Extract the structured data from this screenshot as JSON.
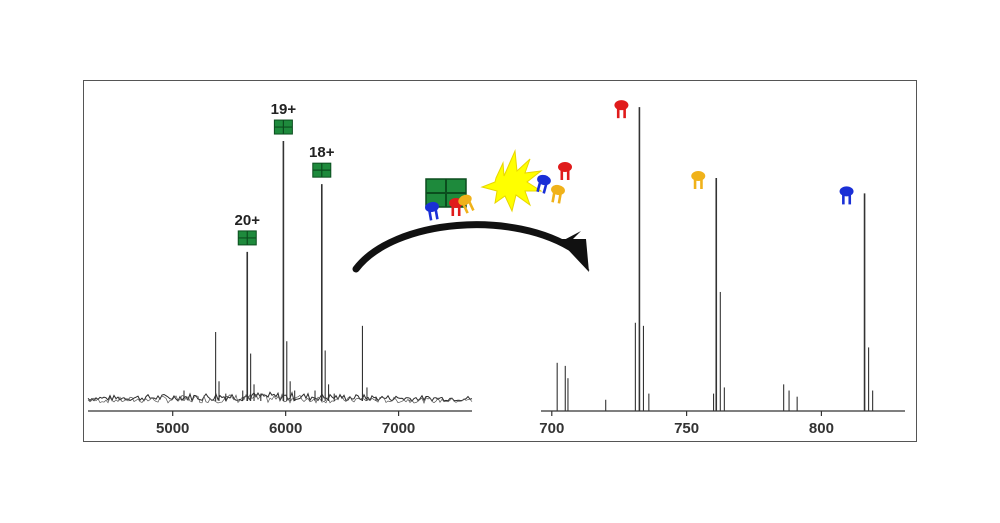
{
  "chart_data": [
    {
      "type": "line",
      "title": "",
      "xlabel": "",
      "ylabel": "",
      "xlim": [
        4250,
        7650
      ],
      "ylim": [
        0,
        100
      ],
      "grid": false,
      "x_ticks": [
        5000,
        6000,
        7000
      ],
      "x_tick_labels": [
        "5000",
        "6000",
        "7000"
      ],
      "peaks": [
        {
          "x": 5100,
          "y": 6
        },
        {
          "x": 5380,
          "y": 25
        },
        {
          "x": 5410,
          "y": 9
        },
        {
          "x": 5470,
          "y": 5
        },
        {
          "x": 5620,
          "y": 6
        },
        {
          "x": 5660,
          "y": 51
        },
        {
          "x": 5690,
          "y": 18
        },
        {
          "x": 5720,
          "y": 8
        },
        {
          "x": 5780,
          "y": 5
        },
        {
          "x": 5980,
          "y": 87
        },
        {
          "x": 6010,
          "y": 22
        },
        {
          "x": 6040,
          "y": 9
        },
        {
          "x": 6080,
          "y": 6
        },
        {
          "x": 6260,
          "y": 6
        },
        {
          "x": 6320,
          "y": 73
        },
        {
          "x": 6350,
          "y": 19
        },
        {
          "x": 6380,
          "y": 8
        },
        {
          "x": 6430,
          "y": 5
        },
        {
          "x": 6680,
          "y": 27
        },
        {
          "x": 6720,
          "y": 7
        },
        {
          "x": 6800,
          "y": 4
        },
        {
          "x": 7100,
          "y": 3
        }
      ],
      "annotations": [
        {
          "text": "20+",
          "x": 5660
        },
        {
          "text": "19+",
          "x": 5980
        },
        {
          "text": "18+",
          "x": 6320
        }
      ]
    },
    {
      "type": "line",
      "title": "",
      "xlabel": "",
      "ylabel": "",
      "xlim": [
        696,
        831
      ],
      "ylim": [
        0,
        100
      ],
      "grid": false,
      "x_ticks": [
        700,
        750,
        800
      ],
      "x_tick_labels": [
        "700",
        "750",
        "800"
      ],
      "peaks": [
        {
          "x": 702,
          "y": 15
        },
        {
          "x": 705,
          "y": 14
        },
        {
          "x": 706,
          "y": 10
        },
        {
          "x": 720,
          "y": 3
        },
        {
          "x": 731,
          "y": 28
        },
        {
          "x": 732.5,
          "y": 98
        },
        {
          "x": 734,
          "y": 27
        },
        {
          "x": 736,
          "y": 5
        },
        {
          "x": 760,
          "y": 5
        },
        {
          "x": 761,
          "y": 75
        },
        {
          "x": 762.5,
          "y": 38
        },
        {
          "x": 764,
          "y": 7
        },
        {
          "x": 786,
          "y": 8
        },
        {
          "x": 788,
          "y": 6
        },
        {
          "x": 791,
          "y": 4
        },
        {
          "x": 816,
          "y": 70
        },
        {
          "x": 817.5,
          "y": 20
        },
        {
          "x": 819,
          "y": 6
        }
      ],
      "annotations": [
        {
          "icon": "red-fragment-icon",
          "x": 732.5
        },
        {
          "icon": "yellow-fragment-icon",
          "x": 761
        },
        {
          "icon": "blue-fragment-icon",
          "x": 816
        }
      ]
    }
  ],
  "colors": {
    "complex_green": "#1e8a3c",
    "red_fragment": "#e01b1b",
    "yellow_fragment": "#f0b21a",
    "blue_fragment": "#1a2fd6",
    "burst": "#ffff00",
    "trace": "#333333"
  }
}
